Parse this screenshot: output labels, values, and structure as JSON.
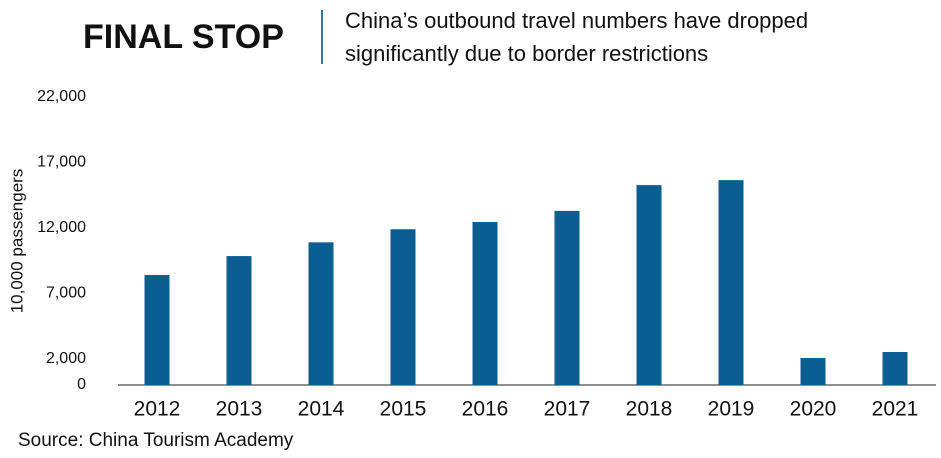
{
  "chart_data": {
    "type": "bar",
    "title": "FINAL STOP",
    "subtitle": [
      "China’s outbound travel numbers have dropped",
      "significantly due to border restrictions"
    ],
    "y_label": "10,000 passengers",
    "source": "Source: China Tourism Academy",
    "categories": [
      "2012",
      "2013",
      "2014",
      "2015",
      "2016",
      "2017",
      "2018",
      "2019",
      "2020",
      "2021"
    ],
    "values": [
      8400,
      9850,
      10900,
      11900,
      12450,
      13300,
      15270,
      15650,
      2060,
      2520
    ],
    "color": "#0a5e92",
    "ylim": [
      0,
      22000
    ],
    "yticks": [
      0,
      {
        "value": 2000,
        "label": "2,000"
      },
      {
        "value": 7000,
        "label": "7,000"
      },
      {
        "value": 12000,
        "label": "12,000"
      },
      {
        "value": 17000,
        "label": "17,000"
      },
      {
        "value": 22000,
        "label": "22,000"
      }
    ],
    "grid": false
  }
}
